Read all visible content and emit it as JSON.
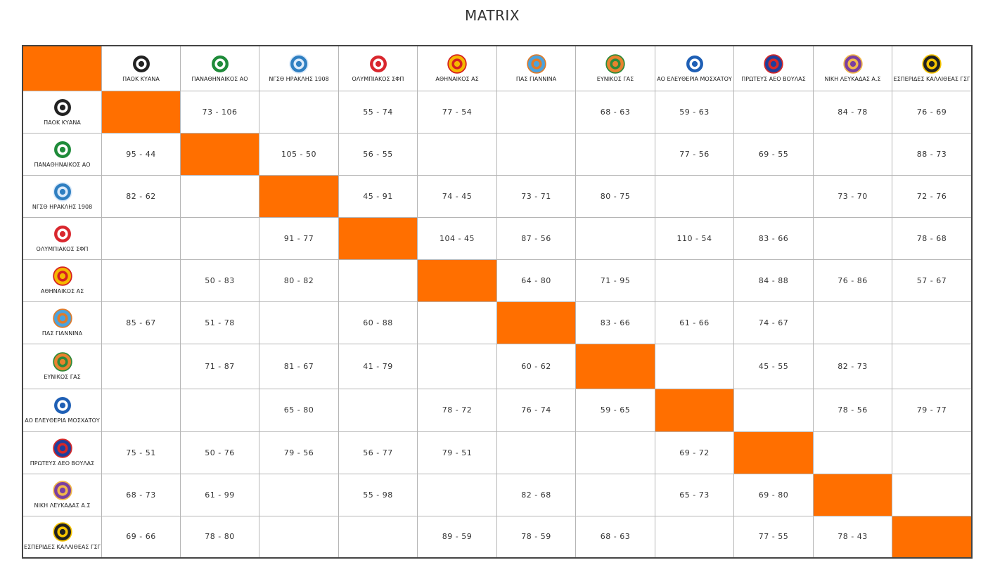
{
  "page": {
    "title": "MATRIX"
  },
  "colors": {
    "diagonal": "#ff6f00",
    "border": "#b5b5b5",
    "outer_border": "#444444"
  },
  "teams": [
    {
      "name": "ΠΑΟΚ ΚΥΑΝΑ",
      "icon": "paok-logo-icon",
      "c1": "#222222",
      "c2": "#ffffff"
    },
    {
      "name": "ΠΑΝΑΘΗΝΑΙΚΟΣ ΑΟ",
      "icon": "panathinaikos-logo-icon",
      "c1": "#1f8b3a",
      "c2": "#ffffff"
    },
    {
      "name": "ΝΓΣΘ ΗΡΑΚΛΗΣ 1908",
      "icon": "iraklis-logo-icon",
      "c1": "#2f7fc1",
      "c2": "#dbeafa"
    },
    {
      "name": "ΟΛΥΜΠΙΑΚΟΣ ΣΦΠ",
      "icon": "olympiakos-logo-icon",
      "c1": "#d9272e",
      "c2": "#ffffff"
    },
    {
      "name": "ΑΘΗΝΑΙΚΟΣ ΑΣ",
      "icon": "athinaikos-logo-icon",
      "c1": "#f5b700",
      "c2": "#d62020"
    },
    {
      "name": "ΠΑΣ ΓΙΑΝΝΙΝΑ",
      "icon": "pas-giannina-logo-icon",
      "c1": "#4aa3df",
      "c2": "#e07b2a"
    },
    {
      "name": "ΕΥΝΙΚΟΣ ΓΑΣ",
      "icon": "eynikos-logo-icon",
      "c1": "#e9822e",
      "c2": "#2e8b3a"
    },
    {
      "name": "ΑΟ ΕΛΕΥΘΕΡΙΑ ΜΟΣΧΑΤΟΥ",
      "icon": "eleftheria-logo-icon",
      "c1": "#1e5fb5",
      "c2": "#ffffff"
    },
    {
      "name": "ΠΡΩΤΕΥΣ ΑΕΟ ΒΟΥΛΑΣ",
      "icon": "proteas-logo-icon",
      "c1": "#1e3f9c",
      "c2": "#d62828"
    },
    {
      "name": "ΝΙΚΗ ΛΕΥΚΑΔΑΣ Α.Σ",
      "icon": "niki-lefkadas-logo-icon",
      "c1": "#7b3fa0",
      "c2": "#f2b84a"
    },
    {
      "name": "ΕΣΠΕΡΙΔΕΣ ΚΑΛΛΙΘΕΑΣ ΓΣΓ",
      "icon": "esperides-logo-icon",
      "c1": "#222222",
      "c2": "#f5c400"
    }
  ],
  "results": [
    [
      "",
      "73 - 106",
      "",
      "55 - 74",
      "77 - 54",
      "",
      "68 - 63",
      "59 - 63",
      "",
      "84 - 78",
      "76 - 69"
    ],
    [
      "95 - 44",
      "",
      "105 - 50",
      "56 - 55",
      "",
      "",
      "",
      "77 - 56",
      "69 - 55",
      "",
      "88 - 73"
    ],
    [
      "82 - 62",
      "",
      "",
      "45 - 91",
      "74 - 45",
      "73 - 71",
      "80 - 75",
      "",
      "",
      "73 - 70",
      "72 - 76"
    ],
    [
      "",
      "",
      "91 - 77",
      "",
      "104 - 45",
      "87 - 56",
      "",
      "110 - 54",
      "83 - 66",
      "",
      "78 - 68"
    ],
    [
      "",
      "50 - 83",
      "80 - 82",
      "",
      "",
      "64 - 80",
      "71 - 95",
      "",
      "84 - 88",
      "76 - 86",
      "57 - 67"
    ],
    [
      "85 - 67",
      "51 - 78",
      "",
      "60 - 88",
      "",
      "",
      "83 - 66",
      "61 - 66",
      "74 - 67",
      "",
      ""
    ],
    [
      "",
      "71 - 87",
      "81 - 67",
      "41 - 79",
      "",
      "60 - 62",
      "",
      "",
      "45 - 55",
      "82 - 73",
      ""
    ],
    [
      "",
      "",
      "65 - 80",
      "",
      "78 - 72",
      "76 - 74",
      "59 - 65",
      "",
      "",
      "78 - 56",
      "79 - 77"
    ],
    [
      "75 - 51",
      "50 - 76",
      "79 - 56",
      "56 - 77",
      "79 - 51",
      "",
      "",
      "69 - 72",
      "",
      "",
      ""
    ],
    [
      "68 - 73",
      "61 - 99",
      "",
      "55 - 98",
      "",
      "82 - 68",
      "",
      "65 - 73",
      "69 - 80",
      "",
      ""
    ],
    [
      "69 - 66",
      "78 - 80",
      "",
      "",
      "89 - 59",
      "78 - 59",
      "68 - 63",
      "",
      "77 - 55",
      "78 - 43",
      ""
    ]
  ]
}
